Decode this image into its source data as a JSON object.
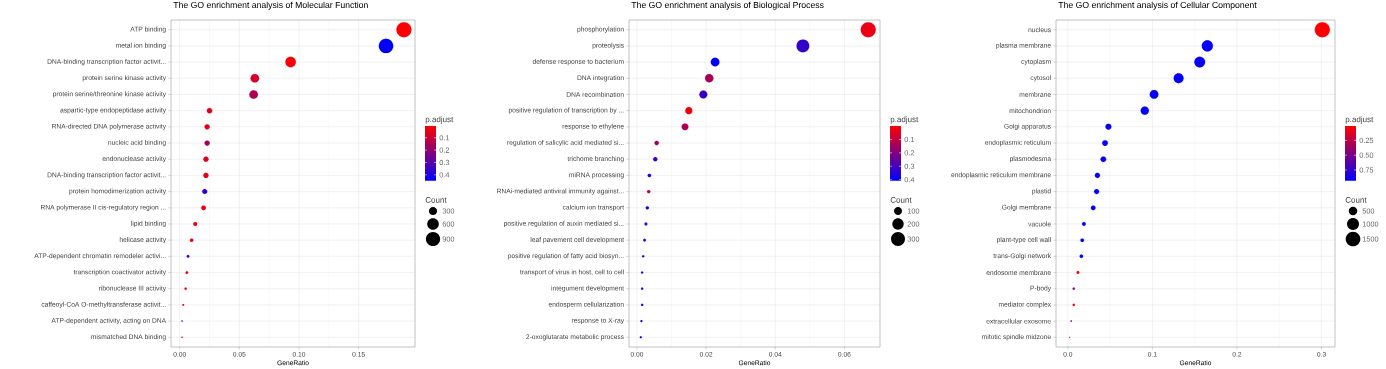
{
  "chart_data": [
    {
      "type": "bubble",
      "orientation": "horizontal",
      "title": "The GO enrichment analysis of Molecular Function",
      "xlabel": "GeneRatio",
      "clabel": "p.adjust",
      "legend_title": "Count",
      "grid": true,
      "categories": [
        "ATP binding",
        "metal ion binding",
        "DNA-binding transcription factor activit...",
        "protein serine kinase activity",
        "protein serine/threonine kinase activity",
        "aspartic-type endopeptidase activity",
        "RNA-directed DNA polymerase activity",
        "nucleic acid binding",
        "endonuclease activity",
        "DNA-binding transcription factor activit...",
        "protein homodimerization activity",
        "RNA polymerase II cis-regulatory region ...",
        "lipid binding",
        "helicase activity",
        "ATP-dependent chromatin remodeler activi...",
        "transcription coactivator activity",
        "ribonuclease III activity",
        "caffeoyl-CoA O-methyltransferase activit...",
        "ATP-dependent activity, acting on DNA",
        "mismatched DNA binding"
      ],
      "values": [
        0.188,
        0.173,
        0.093,
        0.063,
        0.062,
        0.025,
        0.023,
        0.023,
        0.022,
        0.022,
        0.021,
        0.02,
        0.013,
        0.01,
        0.007,
        0.006,
        0.005,
        0.003,
        0.002,
        0.002
      ],
      "sizes": [
        1000,
        920,
        490,
        330,
        330,
        130,
        120,
        120,
        120,
        120,
        110,
        100,
        70,
        55,
        35,
        33,
        25,
        15,
        10,
        9
      ],
      "size_legend": [
        300,
        600,
        900
      ],
      "cvalues": [
        0.01,
        0.45,
        0.02,
        0.08,
        0.15,
        0.06,
        0.05,
        0.17,
        0.06,
        0.05,
        0.38,
        0.04,
        0.04,
        0.03,
        0.36,
        0.05,
        0.04,
        0.08,
        0.33,
        0.12
      ],
      "clim": [
        0.005,
        0.45
      ],
      "cticks": [
        0.1,
        0.2,
        0.3,
        0.4
      ],
      "xlim": [
        -0.0073,
        0.1973
      ],
      "xticks": [
        {
          "value": 0,
          "label": "0.00"
        },
        {
          "value": 0.05,
          "label": "0.05"
        },
        {
          "value": 0.1,
          "label": "0.10"
        },
        {
          "value": 0.15,
          "label": "0.15"
        }
      ]
    },
    {
      "type": "bubble",
      "orientation": "horizontal",
      "title": "The GO enrichment analysis of Biological Process",
      "xlabel": "GeneRatio",
      "clabel": "p.adjust",
      "legend_title": "Count",
      "grid": true,
      "categories": [
        "phosphorylation",
        "proteolysis",
        "defense response to bacterium",
        "DNA integration",
        "DNA recombination",
        "positive regulation of transcription by ...",
        "response to ethylene",
        "regulation of salicylic acid mediated si...",
        "trichome branching",
        "miRNA processing",
        "RNAi-mediated antiviral immunity against...",
        "calcium ion transport",
        "positive regulation of auxin mediated si...",
        "leaf pavement cell development",
        "positive regulation of fatty acid biosyn...",
        "transport of virus in host, cell to cell",
        "integument development",
        "endosperm cellularization",
        "response to X-ray",
        "2-oxoglutarate metabolic process"
      ],
      "values": [
        0.0669,
        0.048,
        0.0226,
        0.0209,
        0.0192,
        0.015,
        0.0139,
        0.0057,
        0.0053,
        0.0036,
        0.0034,
        0.003,
        0.0026,
        0.0022,
        0.0018,
        0.0015,
        0.0015,
        0.0015,
        0.0013,
        0.0011
      ],
      "sizes": [
        348,
        250,
        118,
        109,
        100,
        78,
        72,
        30,
        28,
        19,
        18,
        16,
        14,
        11,
        9,
        8,
        8,
        8,
        7,
        6
      ],
      "size_legend": [
        100,
        200,
        300
      ],
      "cvalues": [
        0.03,
        0.33,
        0.41,
        0.14,
        0.32,
        0.02,
        0.13,
        0.16,
        0.33,
        0.35,
        0.12,
        0.38,
        0.32,
        0.36,
        0.33,
        0.37,
        0.37,
        0.35,
        0.36,
        0.4
      ],
      "clim": [
        0.0,
        0.41
      ],
      "cticks": [
        0.1,
        0.2,
        0.3,
        0.4
      ],
      "xlim": [
        -0.0023,
        0.0703
      ],
      "xticks": [
        {
          "value": 0,
          "label": "0.00"
        },
        {
          "value": 0.02,
          "label": "0.02"
        },
        {
          "value": 0.04,
          "label": "0.04"
        },
        {
          "value": 0.06,
          "label": "0.06"
        }
      ]
    },
    {
      "type": "bubble",
      "orientation": "horizontal",
      "title": "The GO enrichment analysis of Cellular Component",
      "xlabel": "GeneRatio",
      "clabel": "p.adjust",
      "legend_title": "Count",
      "grid": true,
      "categories": [
        "nucleus",
        "plasma membrane",
        "cytoplasm",
        "cytosol",
        "membrane",
        "mitochondrion",
        "Golgi apparatus",
        "endoplasmic reticulum",
        "plasmodesma",
        "endoplasmic reticulum membrane",
        "plastid",
        "Golgi membrane",
        "vacuole",
        "plant-type cell wall",
        "trans-Golgi network",
        "endosome membrane",
        "P-body",
        "mediator complex",
        "extracellular exosome",
        "mitotic spindle midzone"
      ],
      "values": [
        0.301,
        0.165,
        0.156,
        0.131,
        0.102,
        0.091,
        0.048,
        0.044,
        0.042,
        0.035,
        0.034,
        0.03,
        0.019,
        0.017,
        0.016,
        0.012,
        0.007,
        0.007,
        0.004,
        0.002
      ],
      "sizes": [
        1570,
        860,
        810,
        680,
        530,
        470,
        250,
        230,
        220,
        180,
        180,
        155,
        100,
        88,
        84,
        61,
        37,
        35,
        18,
        8
      ],
      "size_legend": [
        500,
        1000,
        1500
      ],
      "cvalues": [
        0.01,
        0.92,
        0.92,
        0.92,
        0.92,
        0.92,
        0.92,
        0.92,
        0.92,
        0.92,
        0.92,
        0.92,
        0.92,
        0.92,
        0.92,
        0.05,
        0.45,
        0.1,
        0.5,
        0.35
      ],
      "clim": [
        0.008,
        0.935
      ],
      "cticks": [
        {
          "value": 0.25,
          "label": "0.25"
        },
        {
          "value": 0.5,
          "label": "0.50"
        },
        {
          "value": 0.75,
          "label": "0.75"
        }
      ],
      "xlim": [
        -0.014,
        0.316
      ],
      "xticks": [
        {
          "value": 0,
          "label": "0.0"
        },
        {
          "value": 0.1,
          "label": "0.1"
        },
        {
          "value": 0.2,
          "label": "0.2"
        },
        {
          "value": 0.3,
          "label": "0.3"
        }
      ]
    }
  ]
}
